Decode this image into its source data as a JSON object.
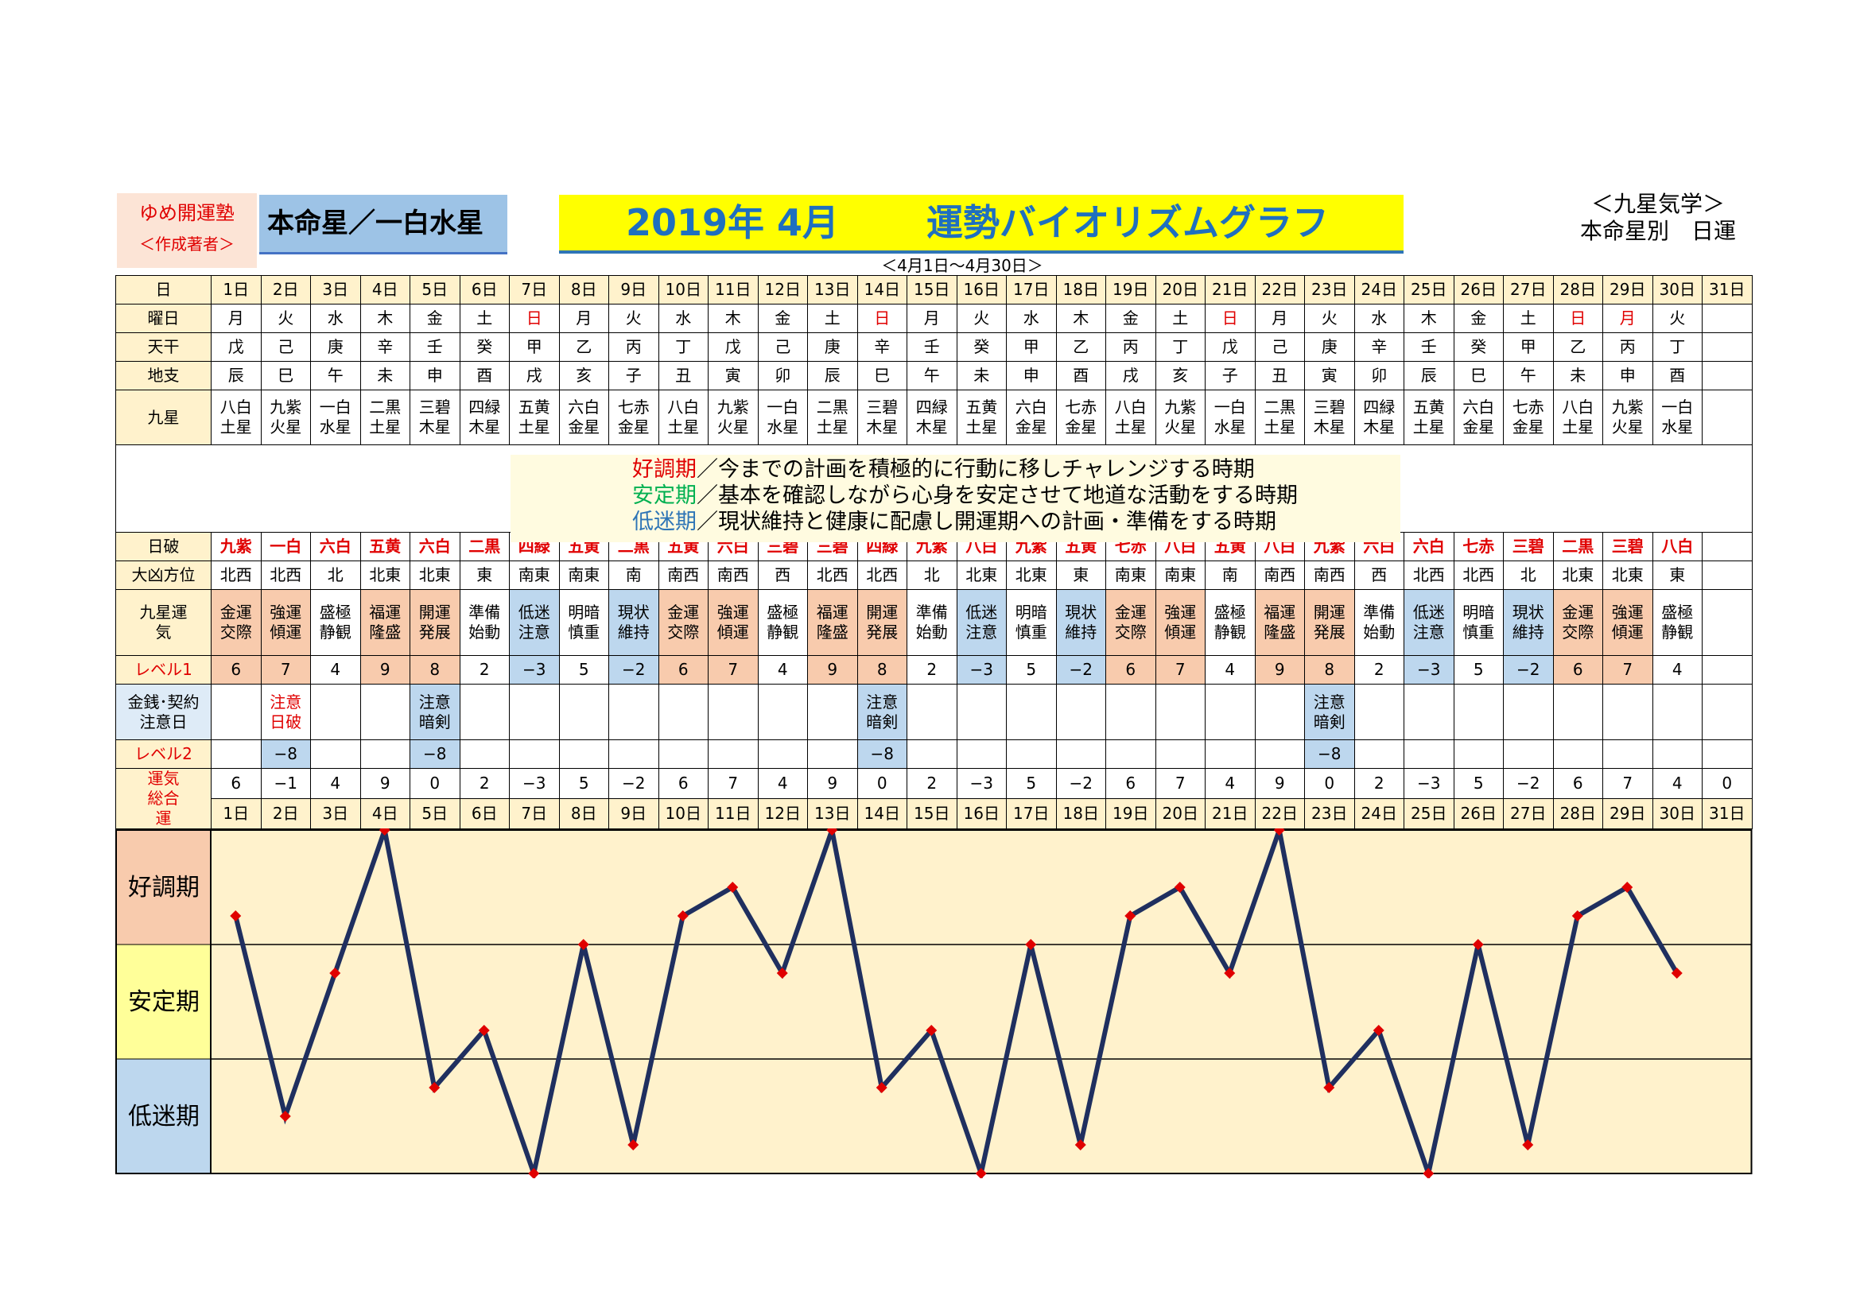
{
  "header": {
    "author_line1": "ゆめ開運塾",
    "author_line2": "＜作成著者＞",
    "honmei_star": "本命星／一白水星",
    "title_date": "2019年 4月",
    "title_main": "運勢バイオリズムグラフ",
    "category_line1": "＜九星気学＞",
    "category_line2": "本命星別　日運",
    "range": "＜4月1日～4月30日＞"
  },
  "row_labels": {
    "day": "日",
    "weekday": "曜日",
    "stem": "天干",
    "branch": "地支",
    "nine_star": "九星",
    "nichiha": "日破",
    "daikyo": "大凶方位",
    "unki": "九星運気",
    "level1": "レベル1",
    "money": "金銭･契約注意日",
    "level2": "レベル2",
    "total": "運気総合運"
  },
  "phases": [
    {
      "name": "好調期",
      "rest": "／今までの計画を積極的に行動に移しチャレンジする時期"
    },
    {
      "name": "安定期",
      "rest": "／基本を確認しながら心身を安定させて地道な活動をする時期"
    },
    {
      "name": "低迷期",
      "rest": "／現状維持と健康に配慮し開運期への計画・準備をする時期"
    }
  ],
  "days": [
    "1日",
    "2日",
    "3日",
    "4日",
    "5日",
    "6日",
    "7日",
    "8日",
    "9日",
    "10日",
    "11日",
    "12日",
    "13日",
    "14日",
    "15日",
    "16日",
    "17日",
    "18日",
    "19日",
    "20日",
    "21日",
    "22日",
    "23日",
    "24日",
    "25日",
    "26日",
    "27日",
    "28日",
    "29日",
    "30日",
    "31日"
  ],
  "weekdays": [
    "月",
    "火",
    "水",
    "木",
    "金",
    "土",
    "日",
    "月",
    "火",
    "水",
    "木",
    "金",
    "土",
    "日",
    "月",
    "火",
    "水",
    "木",
    "金",
    "土",
    "日",
    "月",
    "火",
    "水",
    "木",
    "金",
    "土",
    "日",
    "月",
    "火",
    ""
  ],
  "stems": [
    "戊",
    "己",
    "庚",
    "辛",
    "壬",
    "癸",
    "甲",
    "乙",
    "丙",
    "丁",
    "戊",
    "己",
    "庚",
    "辛",
    "壬",
    "癸",
    "甲",
    "乙",
    "丙",
    "丁",
    "戊",
    "己",
    "庚",
    "辛",
    "壬",
    "癸",
    "甲",
    "乙",
    "丙",
    "丁",
    ""
  ],
  "branches": [
    "辰",
    "巳",
    "午",
    "未",
    "申",
    "酉",
    "戌",
    "亥",
    "子",
    "丑",
    "寅",
    "卯",
    "辰",
    "巳",
    "午",
    "未",
    "申",
    "酉",
    "戌",
    "亥",
    "子",
    "丑",
    "寅",
    "卯",
    "辰",
    "巳",
    "午",
    "未",
    "申",
    "酉",
    ""
  ],
  "nine_stars": [
    [
      "八白",
      "土星"
    ],
    [
      "九紫",
      "火星"
    ],
    [
      "一白",
      "水星"
    ],
    [
      "二黒",
      "土星"
    ],
    [
      "三碧",
      "木星"
    ],
    [
      "四緑",
      "木星"
    ],
    [
      "五黄",
      "土星"
    ],
    [
      "六白",
      "金星"
    ],
    [
      "七赤",
      "金星"
    ],
    [
      "八白",
      "土星"
    ],
    [
      "九紫",
      "火星"
    ],
    [
      "一白",
      "水星"
    ],
    [
      "二黒",
      "土星"
    ],
    [
      "三碧",
      "木星"
    ],
    [
      "四緑",
      "木星"
    ],
    [
      "五黄",
      "土星"
    ],
    [
      "六白",
      "金星"
    ],
    [
      "七赤",
      "金星"
    ],
    [
      "八白",
      "土星"
    ],
    [
      "九紫",
      "火星"
    ],
    [
      "一白",
      "水星"
    ],
    [
      "二黒",
      "土星"
    ],
    [
      "三碧",
      "木星"
    ],
    [
      "四緑",
      "木星"
    ],
    [
      "五黄",
      "土星"
    ],
    [
      "六白",
      "金星"
    ],
    [
      "七赤",
      "金星"
    ],
    [
      "八白",
      "土星"
    ],
    [
      "九紫",
      "火星"
    ],
    [
      "一白",
      "水星"
    ],
    [
      "",
      ""
    ]
  ],
  "nichiha": [
    "九紫",
    "一白",
    "六白",
    "五黄",
    "六白",
    "二黒",
    "四緑",
    "五黄",
    "二黒",
    "五黄",
    "六白",
    "三碧",
    "三碧",
    "四緑",
    "九紫",
    "八白",
    "九紫",
    "五黄",
    "七赤",
    "八白",
    "五黄",
    "八白",
    "九紫",
    "六白",
    "六白",
    "七赤",
    "三碧",
    "二黒",
    "三碧",
    "八白",
    ""
  ],
  "daikyo": [
    "北西",
    "北西",
    "北",
    "北東",
    "北東",
    "東",
    "南東",
    "南東",
    "南",
    "南西",
    "南西",
    "西",
    "北西",
    "北西",
    "北",
    "北東",
    "北東",
    "東",
    "南東",
    "南東",
    "南",
    "南西",
    "南西",
    "西",
    "北西",
    "北西",
    "北",
    "北東",
    "北東",
    "東",
    ""
  ],
  "unki": [
    [
      "金運",
      "交際"
    ],
    [
      "強運",
      "傾運"
    ],
    [
      "盛極",
      "静観"
    ],
    [
      "福運",
      "隆盛"
    ],
    [
      "開運",
      "発展"
    ],
    [
      "準備",
      "始動"
    ],
    [
      "低迷",
      "注意"
    ],
    [
      "明暗",
      "慎重"
    ],
    [
      "現状",
      "維持"
    ],
    [
      "金運",
      "交際"
    ],
    [
      "強運",
      "傾運"
    ],
    [
      "盛極",
      "静観"
    ],
    [
      "福運",
      "隆盛"
    ],
    [
      "開運",
      "発展"
    ],
    [
      "準備",
      "始動"
    ],
    [
      "低迷",
      "注意"
    ],
    [
      "明暗",
      "慎重"
    ],
    [
      "現状",
      "維持"
    ],
    [
      "金運",
      "交際"
    ],
    [
      "強運",
      "傾運"
    ],
    [
      "盛極",
      "静観"
    ],
    [
      "福運",
      "隆盛"
    ],
    [
      "開運",
      "発展"
    ],
    [
      "準備",
      "始動"
    ],
    [
      "低迷",
      "注意"
    ],
    [
      "明暗",
      "慎重"
    ],
    [
      "現状",
      "維持"
    ],
    [
      "金運",
      "交際"
    ],
    [
      "強運",
      "傾運"
    ],
    [
      "盛極",
      "静観"
    ],
    [
      "",
      ""
    ]
  ],
  "level1": [
    "6",
    "7",
    "4",
    "9",
    "8",
    "2",
    "−3",
    "5",
    "−2",
    "6",
    "7",
    "4",
    "9",
    "8",
    "2",
    "−3",
    "5",
    "−2",
    "6",
    "7",
    "4",
    "9",
    "8",
    "2",
    "−3",
    "5",
    "−2",
    "6",
    "7",
    "4",
    ""
  ],
  "money": [
    [
      "",
      ""
    ],
    [
      "注意",
      "日破"
    ],
    [
      "",
      ""
    ],
    [
      "",
      ""
    ],
    [
      "注意",
      "暗剣"
    ],
    [
      "",
      ""
    ],
    [
      "",
      ""
    ],
    [
      "",
      ""
    ],
    [
      "",
      ""
    ],
    [
      "",
      ""
    ],
    [
      "",
      ""
    ],
    [
      "",
      ""
    ],
    [
      "",
      ""
    ],
    [
      "注意",
      "暗剣"
    ],
    [
      "",
      ""
    ],
    [
      "",
      ""
    ],
    [
      "",
      ""
    ],
    [
      "",
      ""
    ],
    [
      "",
      ""
    ],
    [
      "",
      ""
    ],
    [
      "",
      ""
    ],
    [
      "",
      ""
    ],
    [
      "注意",
      "暗剣"
    ],
    [
      "",
      ""
    ],
    [
      "",
      ""
    ],
    [
      "",
      ""
    ],
    [
      "",
      ""
    ],
    [
      "",
      ""
    ],
    [
      "",
      ""
    ],
    [
      "",
      ""
    ],
    [
      "",
      ""
    ]
  ],
  "level2": [
    "",
    "−8",
    "",
    "",
    "−8",
    "",
    "",
    "",
    "",
    "",
    "",
    "",
    "",
    "−8",
    "",
    "",
    "",
    "",
    "",
    "",
    "",
    "",
    "−8",
    "",
    "",
    "",
    "",
    "",
    "",
    "",
    ""
  ],
  "total": [
    "6",
    "−1",
    "4",
    "9",
    "0",
    "2",
    "−3",
    "5",
    "−2",
    "6",
    "7",
    "4",
    "9",
    "0",
    "2",
    "−3",
    "5",
    "−2",
    "6",
    "7",
    "4",
    "9",
    "0",
    "2",
    "−3",
    "5",
    "−2",
    "6",
    "7",
    "4",
    "0"
  ],
  "colors": {
    "sunday_red": "#e00000",
    "good_fill": "#f8cbad",
    "stable_fill": "#ffff99",
    "low_fill": "#bdd7ee",
    "plot_bg": "#fff2cc",
    "line": "#1f2f5f",
    "marker": "#e00000"
  },
  "chart_data": {
    "type": "line",
    "x": [
      1,
      2,
      3,
      4,
      5,
      6,
      7,
      8,
      9,
      10,
      11,
      12,
      13,
      14,
      15,
      16,
      17,
      18,
      19,
      20,
      21,
      22,
      23,
      24,
      25,
      26,
      27,
      28,
      29,
      30
    ],
    "values": [
      6,
      -1,
      4,
      9,
      0,
      2,
      -3,
      5,
      -2,
      6,
      7,
      4,
      9,
      0,
      2,
      -3,
      5,
      -2,
      6,
      7,
      4,
      9,
      0,
      2,
      -3,
      5,
      -2,
      6,
      7,
      4
    ],
    "ylim": [
      -3,
      9
    ],
    "bands": [
      "好調期",
      "安定期",
      "低迷期"
    ],
    "line_color": "#1f2f5f",
    "marker_color": "#e00000"
  }
}
